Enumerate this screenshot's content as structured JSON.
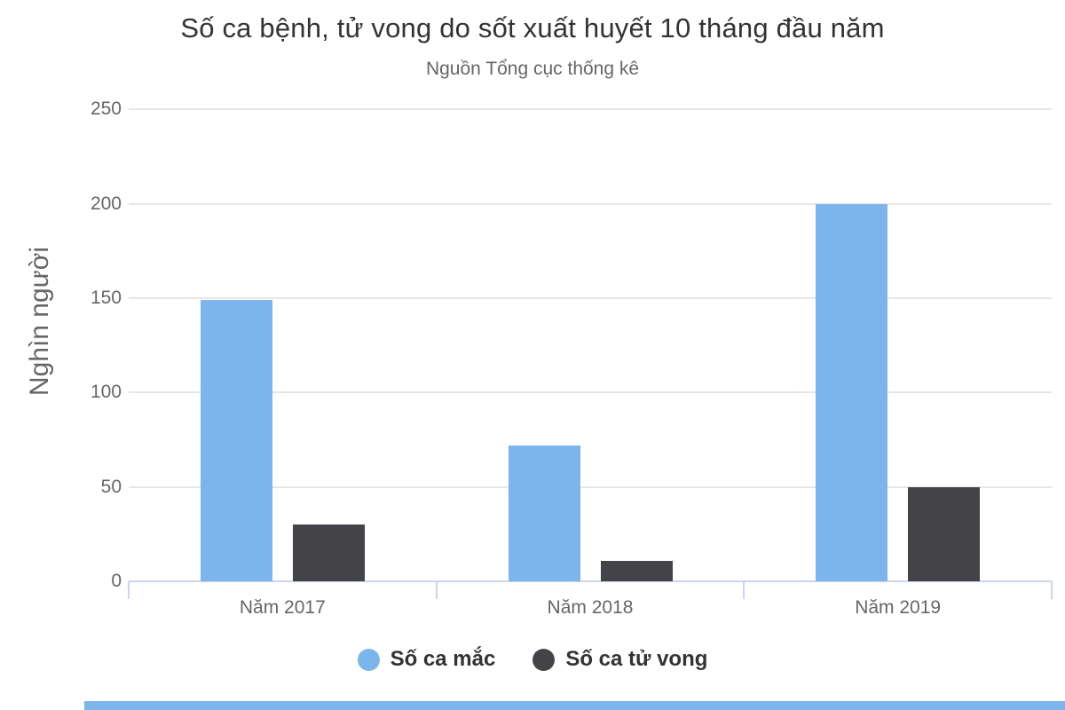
{
  "chart_data": {
    "type": "bar",
    "title": "Số ca bệnh, tử vong do sốt xuất huyết 10 tháng đầu năm",
    "subtitle": "Nguồn Tổng cục thống kê",
    "ylabel": "Nghìn người",
    "xlabel": "",
    "categories": [
      "Năm 2017",
      "Năm 2018",
      "Năm 2019"
    ],
    "series": [
      {
        "name": "Số ca mắc",
        "color": "#7cb5ec",
        "values": [
          149,
          72,
          200
        ]
      },
      {
        "name": "Số ca tử vong",
        "color": "#434348",
        "values": [
          30,
          11,
          50
        ]
      }
    ],
    "ylim": [
      0,
      250
    ],
    "yticks": [
      0,
      50,
      100,
      150,
      200,
      250
    ],
    "grid": true,
    "legend_position": "bottom"
  },
  "colors": {
    "series_blue": "#7cb5ec",
    "series_dark": "#434348",
    "gridline": "#e6e6e6",
    "axis_line": "#ccd6eb",
    "title_text": "#333333",
    "muted_text": "#666666",
    "legend_text": "#333333",
    "bottom_strip": "#7cb5ec"
  }
}
